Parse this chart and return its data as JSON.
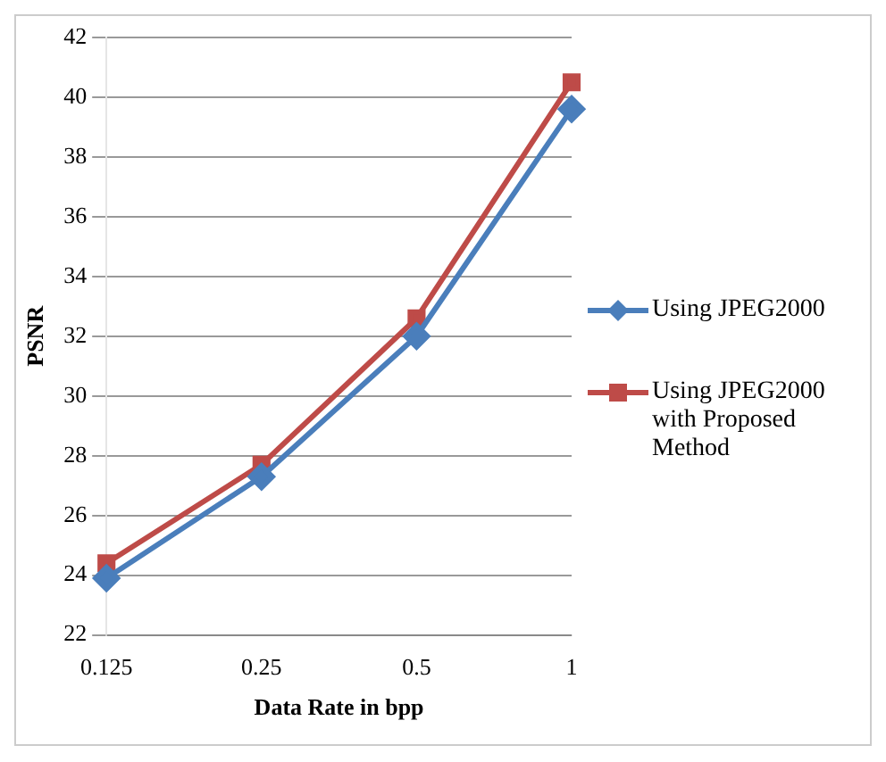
{
  "chart_data": {
    "type": "line",
    "xlabel": "Data Rate in bpp",
    "ylabel": "PSNR",
    "categories": [
      "0.125",
      "0.25",
      "0.5",
      "1"
    ],
    "series": [
      {
        "name": "Using JPEG2000",
        "color": "#4a7ebb",
        "values": [
          23.9,
          27.3,
          32.0,
          39.6
        ],
        "marker": "diamond"
      },
      {
        "name": "Using JPEG2000 with Proposed Method",
        "color": "#be4b48",
        "values": [
          24.4,
          27.7,
          32.6,
          40.5
        ],
        "marker": "square"
      }
    ],
    "ylim": [
      22,
      42
    ],
    "yticks": [
      22,
      24,
      26,
      28,
      30,
      32,
      34,
      36,
      38,
      40,
      42
    ],
    "grid": "y",
    "legend": "right",
    "line_style": "solid"
  }
}
